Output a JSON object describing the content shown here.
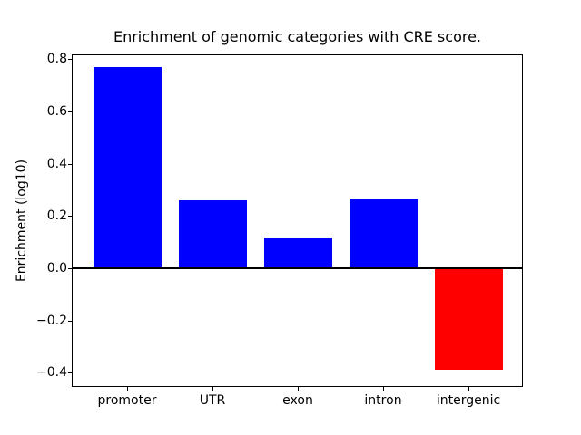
{
  "figure": {
    "background_color": "#ffffff",
    "axis_color": "#000000"
  },
  "chart_data": {
    "type": "bar",
    "title": "Enrichment of genomic categories with CRE score.",
    "xlabel": "",
    "ylabel": "Enrichment (log10)",
    "categories": [
      "promoter",
      "UTR",
      "exon",
      "intron",
      "intergenic"
    ],
    "values": [
      0.77,
      0.259,
      0.115,
      0.262,
      -0.387
    ],
    "bar_colors": [
      "#0000ff",
      "#0000ff",
      "#0000ff",
      "#0000ff",
      "#ff0000"
    ],
    "positive_color": "#0000ff",
    "negative_color": "#ff0000",
    "yticks": [
      0.8,
      0.6,
      0.4,
      0.2,
      0.0,
      -0.2,
      -0.4
    ],
    "ytick_labels": [
      "0.8",
      "0.6",
      "0.4",
      "0.2",
      "0.0",
      "−0.2",
      "−0.4"
    ],
    "ylim": [
      -0.454,
      0.818
    ],
    "grid": false,
    "legend": null,
    "zero_line": true
  }
}
